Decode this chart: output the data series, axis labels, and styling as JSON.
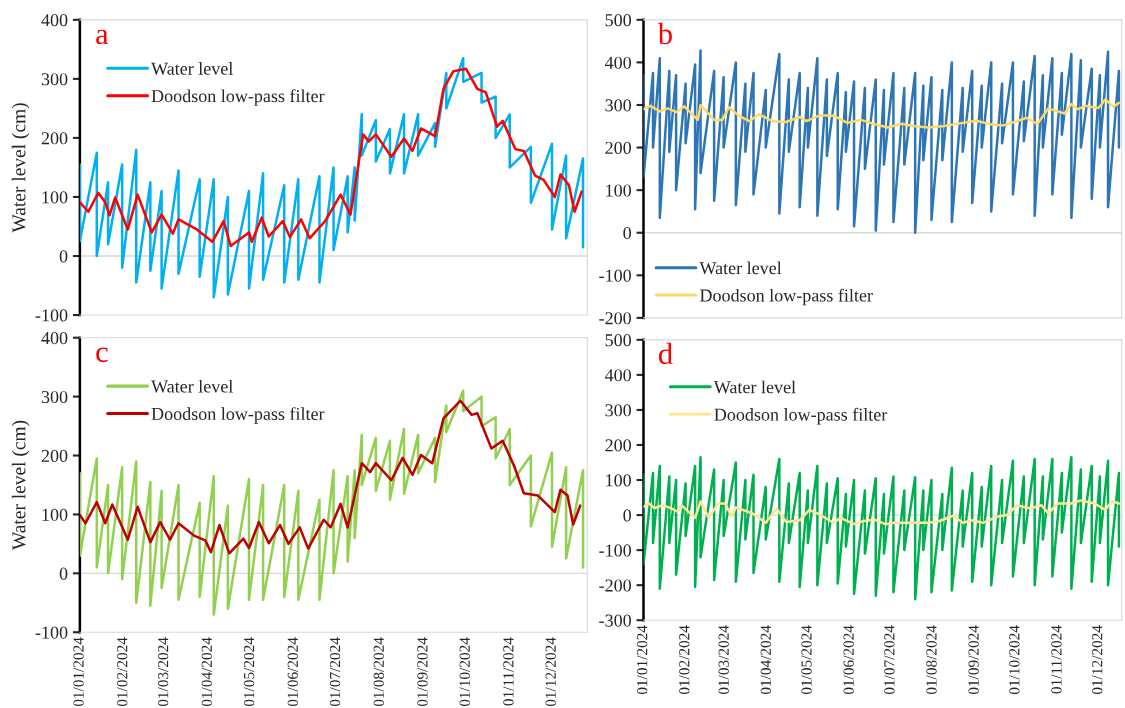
{
  "chart_data": [
    {
      "type": "line",
      "ylabel": "Water level (cm)",
      "annotations": [
        "a"
      ],
      "legend": "top left",
      "tick_labels": "y",
      "xlim": [
        "2024-01-01",
        "2024-12-26"
      ],
      "ylim": [
        -100,
        400
      ],
      "yticks": [
        -100,
        0,
        100,
        200,
        300,
        400
      ],
      "ref_lines": [
        {
          "axis": "y",
          "value": 0,
          "color": "#d9d9d9"
        }
      ],
      "series": [
        {
          "name": "Water level",
          "color": "#00b0f0",
          "x": [
            "2024-01-01",
            "2024-01-01",
            "2024-01-13",
            "2024-01-13",
            "2024-01-21",
            "2024-01-21",
            "2024-01-31",
            "2024-01-31",
            "2024-02-10",
            "2024-02-10",
            "2024-02-20",
            "2024-02-20",
            "2024-02-28",
            "2024-02-28",
            "2024-03-11",
            "2024-03-11",
            "2024-03-26",
            "2024-03-26",
            "2024-04-05",
            "2024-04-05",
            "2024-04-15",
            "2024-04-15",
            "2024-04-30",
            "2024-04-30",
            "2024-05-10",
            "2024-05-10",
            "2024-05-25",
            "2024-05-25",
            "2024-06-04",
            "2024-06-04",
            "2024-06-19",
            "2024-06-19",
            "2024-06-29",
            "2024-06-29",
            "2024-07-09",
            "2024-07-09",
            "2024-07-14",
            "2024-07-14",
            "2024-07-19",
            "2024-07-19",
            "2024-07-29",
            "2024-07-29",
            "2024-08-08",
            "2024-08-08",
            "2024-08-18",
            "2024-08-18",
            "2024-08-28",
            "2024-08-28",
            "2024-09-09",
            "2024-09-09",
            "2024-09-17",
            "2024-09-17",
            "2024-09-29",
            "2024-09-29",
            "2024-10-12",
            "2024-10-12",
            "2024-10-22",
            "2024-10-22",
            "2024-11-01",
            "2024-11-01",
            "2024-11-16",
            "2024-11-16",
            "2024-12-01",
            "2024-12-01",
            "2024-12-11",
            "2024-12-11",
            "2024-12-23",
            "2024-12-23"
          ],
          "values": [
            155,
            25,
            175,
            0,
            125,
            20,
            155,
            -20,
            180,
            -45,
            125,
            -25,
            110,
            -55,
            145,
            -30,
            130,
            -35,
            130,
            -70,
            100,
            -65,
            110,
            -55,
            140,
            -40,
            120,
            -45,
            130,
            -40,
            135,
            -45,
            150,
            10,
            135,
            40,
            150,
            60,
            240,
            170,
            230,
            160,
            215,
            140,
            240,
            140,
            240,
            170,
            225,
            185,
            310,
            250,
            335,
            295,
            310,
            260,
            270,
            200,
            240,
            150,
            185,
            90,
            190,
            45,
            170,
            30,
            165,
            15
          ]
        },
        {
          "name": "Doodson low-pass filter",
          "color": "#ff0000",
          "x": [
            "2024-01-01",
            "2024-01-07",
            "2024-01-14",
            "2024-01-19",
            "2024-01-22",
            "2024-01-26",
            "2024-02-04",
            "2024-02-11",
            "2024-02-21",
            "2024-02-28",
            "2024-03-07",
            "2024-03-11",
            "2024-03-24",
            "2024-04-04",
            "2024-04-12",
            "2024-04-17",
            "2024-04-30",
            "2024-05-02",
            "2024-05-09",
            "2024-05-14",
            "2024-05-24",
            "2024-05-29",
            "2024-06-06",
            "2024-06-12",
            "2024-06-23",
            "2024-07-04",
            "2024-07-11",
            "2024-07-20",
            "2024-07-24",
            "2024-07-29",
            "2024-08-09",
            "2024-08-18",
            "2024-08-24",
            "2024-08-30",
            "2024-09-09",
            "2024-09-15",
            "2024-09-22",
            "2024-10-01",
            "2024-10-09",
            "2024-10-15",
            "2024-10-23",
            "2024-10-27",
            "2024-11-05",
            "2024-11-11",
            "2024-11-19",
            "2024-11-25",
            "2024-12-03",
            "2024-12-07",
            "2024-12-13",
            "2024-12-17",
            "2024-12-22"
          ],
          "values": [
            91,
            75,
            107,
            91,
            69,
            99,
            45,
            104,
            40,
            70,
            38,
            62,
            45,
            24,
            59,
            17,
            40,
            24,
            65,
            33,
            59,
            32,
            62,
            30,
            59,
            104,
            70,
            206,
            194,
            206,
            168,
            199,
            178,
            216,
            203,
            283,
            313,
            317,
            283,
            277,
            219,
            229,
            181,
            178,
            136,
            129,
            100,
            138,
            120,
            75,
            109
          ]
        }
      ]
    },
    {
      "type": "line",
      "annotations": [
        "b"
      ],
      "legend": "bottom left",
      "tick_labels": "y",
      "xlim": [
        "2024-01-01",
        "2024-12-18"
      ],
      "ylim": [
        -200,
        500
      ],
      "yticks": [
        -200,
        -100,
        0,
        100,
        200,
        300,
        400,
        500
      ],
      "ref_lines": [
        {
          "axis": "y",
          "value": 0,
          "color": "#d9d9d9"
        }
      ],
      "series": [
        {
          "name": "Water level",
          "color": "#2e75b6",
          "x": [
            "2024-01-01",
            "2024-01-01",
            "2024-01-08",
            "2024-01-08",
            "2024-01-13",
            "2024-01-13",
            "2024-01-20",
            "2024-01-20",
            "2024-01-25",
            "2024-01-25",
            "2024-02-01",
            "2024-02-01",
            "2024-02-08",
            "2024-02-08",
            "2024-02-12",
            "2024-02-12",
            "2024-02-22",
            "2024-02-22",
            "2024-02-29",
            "2024-02-29",
            "2024-03-09",
            "2024-03-09",
            "2024-03-16",
            "2024-03-16",
            "2024-03-22",
            "2024-03-22",
            "2024-03-31",
            "2024-03-31",
            "2024-04-10",
            "2024-04-10",
            "2024-04-17",
            "2024-04-17",
            "2024-04-25",
            "2024-04-25",
            "2024-05-01",
            "2024-05-01",
            "2024-05-08",
            "2024-05-08",
            "2024-05-15",
            "2024-05-15",
            "2024-05-23",
            "2024-05-23",
            "2024-05-29",
            "2024-05-29",
            "2024-06-04",
            "2024-06-04",
            "2024-06-12",
            "2024-06-12",
            "2024-06-20",
            "2024-06-20",
            "2024-06-26",
            "2024-06-26",
            "2024-07-03",
            "2024-07-03",
            "2024-07-11",
            "2024-07-11",
            "2024-07-19",
            "2024-07-19",
            "2024-07-25",
            "2024-07-25",
            "2024-07-31",
            "2024-07-31",
            "2024-08-08",
            "2024-08-08",
            "2024-08-15",
            "2024-08-15",
            "2024-08-23",
            "2024-08-23",
            "2024-08-30",
            "2024-08-30",
            "2024-09-06",
            "2024-09-06",
            "2024-09-13",
            "2024-09-13",
            "2024-09-21",
            "2024-09-21",
            "2024-09-29",
            "2024-09-29",
            "2024-10-07",
            "2024-10-07",
            "2024-10-15",
            "2024-10-15",
            "2024-10-21",
            "2024-10-21",
            "2024-10-28",
            "2024-10-28",
            "2024-11-04",
            "2024-11-04",
            "2024-11-11",
            "2024-11-11",
            "2024-11-18",
            "2024-11-18",
            "2024-11-26",
            "2024-11-26",
            "2024-12-02",
            "2024-12-02",
            "2024-12-08",
            "2024-12-08",
            "2024-12-16",
            "2024-12-16"
          ],
          "values": [
            370,
            130,
            375,
            200,
            410,
            35,
            380,
            190,
            370,
            100,
            350,
            210,
            395,
            55,
            428,
            140,
            380,
            75,
            365,
            200,
            400,
            65,
            350,
            190,
            375,
            90,
            335,
            200,
            420,
            45,
            360,
            190,
            375,
            60,
            340,
            200,
            410,
            40,
            360,
            180,
            375,
            55,
            330,
            190,
            355,
            15,
            340,
            150,
            360,
            5,
            335,
            160,
            375,
            25,
            340,
            160,
            375,
            0,
            345,
            170,
            365,
            30,
            335,
            170,
            400,
            25,
            340,
            190,
            380,
            70,
            345,
            200,
            400,
            50,
            350,
            210,
            400,
            90,
            355,
            215,
            415,
            40,
            370,
            200,
            410,
            90,
            375,
            230,
            420,
            35,
            405,
            200,
            385,
            80,
            370,
            200,
            425,
            60,
            380,
            200
          ]
        },
        {
          "name": "Doodson low-pass filter",
          "color": "#ffd966",
          "x": [
            "2024-01-01",
            "2024-01-06",
            "2024-01-13",
            "2024-01-19",
            "2024-01-25",
            "2024-01-31",
            "2024-02-10",
            "2024-02-12",
            "2024-02-22",
            "2024-02-28",
            "2024-03-04",
            "2024-03-11",
            "2024-03-19",
            "2024-03-26",
            "2024-04-05",
            "2024-04-15",
            "2024-04-25",
            "2024-04-30",
            "2024-05-10",
            "2024-05-20",
            "2024-05-30",
            "2024-06-09",
            "2024-06-19",
            "2024-06-29",
            "2024-07-09",
            "2024-07-19",
            "2024-07-29",
            "2024-08-08",
            "2024-08-23",
            "2024-09-02",
            "2024-09-12",
            "2024-09-22",
            "2024-10-02",
            "2024-10-09",
            "2024-10-17",
            "2024-10-25",
            "2024-11-01",
            "2024-11-06",
            "2024-11-11",
            "2024-11-16",
            "2024-11-21",
            "2024-12-01",
            "2024-12-06",
            "2024-12-12",
            "2024-12-16"
          ],
          "values": [
            290,
            298,
            285,
            292,
            283,
            297,
            265,
            300,
            265,
            265,
            295,
            275,
            262,
            278,
            262,
            260,
            272,
            262,
            276,
            275,
            258,
            265,
            255,
            247,
            256,
            250,
            247,
            250,
            258,
            263,
            255,
            252,
            262,
            270,
            255,
            292,
            285,
            280,
            302,
            290,
            298,
            293,
            313,
            296,
            305
          ]
        }
      ]
    },
    {
      "type": "line",
      "ylabel": "Water level (cm)",
      "annotations": [
        "c"
      ],
      "legend": "top left",
      "xlim": [
        "2024-01-01",
        "2024-12-26"
      ],
      "ylim": [
        -100,
        400
      ],
      "yticks": [
        -100,
        0,
        100,
        200,
        300,
        400
      ],
      "xticks": [
        {
          "value": "2024-01-01",
          "label": "01/01/2024"
        },
        {
          "value": "2024-02-01",
          "label": "01/02/2024"
        },
        {
          "value": "2024-03-01",
          "label": "01/03/2024"
        },
        {
          "value": "2024-04-01",
          "label": "01/04/2024"
        },
        {
          "value": "2024-05-01",
          "label": "01/05/2024"
        },
        {
          "value": "2024-06-01",
          "label": "01/06/2024"
        },
        {
          "value": "2024-07-01",
          "label": "01/07/2024"
        },
        {
          "value": "2024-08-01",
          "label": "01/08/2024"
        },
        {
          "value": "2024-09-01",
          "label": "01/09/2024"
        },
        {
          "value": "2024-10-01",
          "label": "01/10/2024"
        },
        {
          "value": "2024-11-01",
          "label": "01/11/2024"
        },
        {
          "value": "2024-12-01",
          "label": "01/12/2024"
        }
      ],
      "ref_lines": [
        {
          "axis": "y",
          "value": 0,
          "color": "#d9d9d9"
        }
      ],
      "series": [
        {
          "name": "Water level",
          "color": "#92d050",
          "x": [
            "2024-01-01",
            "2024-01-01",
            "2024-01-13",
            "2024-01-13",
            "2024-01-21",
            "2024-01-21",
            "2024-01-31",
            "2024-01-31",
            "2024-02-10",
            "2024-02-10",
            "2024-02-20",
            "2024-02-20",
            "2024-02-28",
            "2024-02-28",
            "2024-03-11",
            "2024-03-11",
            "2024-03-26",
            "2024-03-26",
            "2024-04-05",
            "2024-04-05",
            "2024-04-15",
            "2024-04-15",
            "2024-04-30",
            "2024-04-30",
            "2024-05-10",
            "2024-05-10",
            "2024-05-25",
            "2024-05-25",
            "2024-06-04",
            "2024-06-04",
            "2024-06-19",
            "2024-06-19",
            "2024-06-29",
            "2024-06-29",
            "2024-07-09",
            "2024-07-09",
            "2024-07-14",
            "2024-07-14",
            "2024-07-19",
            "2024-07-19",
            "2024-07-29",
            "2024-07-29",
            "2024-08-08",
            "2024-08-08",
            "2024-08-18",
            "2024-08-18",
            "2024-08-28",
            "2024-08-28",
            "2024-09-09",
            "2024-09-09",
            "2024-09-17",
            "2024-09-17",
            "2024-09-29",
            "2024-09-29",
            "2024-10-12",
            "2024-10-12",
            "2024-10-22",
            "2024-10-22",
            "2024-11-01",
            "2024-11-01",
            "2024-11-16",
            "2024-11-16",
            "2024-12-01",
            "2024-12-01",
            "2024-12-11",
            "2024-12-11",
            "2024-12-23",
            "2024-12-23"
          ],
          "values": [
            170,
            30,
            195,
            10,
            150,
            0,
            180,
            -10,
            190,
            -50,
            155,
            -55,
            140,
            -25,
            150,
            -45,
            120,
            -40,
            165,
            -70,
            115,
            -60,
            160,
            -45,
            150,
            -45,
            150,
            -40,
            140,
            -45,
            125,
            -45,
            175,
            0,
            165,
            20,
            175,
            60,
            235,
            150,
            230,
            140,
            225,
            125,
            245,
            135,
            235,
            170,
            230,
            155,
            285,
            240,
            310,
            275,
            300,
            250,
            265,
            195,
            245,
            150,
            200,
            80,
            205,
            45,
            180,
            25,
            175,
            10
          ]
        },
        {
          "name": "Doodson low-pass filter",
          "color": "#c00000",
          "x": [
            "2024-01-01",
            "2024-01-05",
            "2024-01-13",
            "2024-01-19",
            "2024-01-24",
            "2024-02-04",
            "2024-02-11",
            "2024-02-20",
            "2024-02-27",
            "2024-03-05",
            "2024-03-11",
            "2024-03-22",
            "2024-03-30",
            "2024-04-03",
            "2024-04-09",
            "2024-04-16",
            "2024-04-26",
            "2024-04-30",
            "2024-05-07",
            "2024-05-14",
            "2024-05-22",
            "2024-05-28",
            "2024-06-05",
            "2024-06-11",
            "2024-06-22",
            "2024-06-27",
            "2024-07-04",
            "2024-07-09",
            "2024-07-19",
            "2024-07-25",
            "2024-07-29",
            "2024-08-09",
            "2024-08-17",
            "2024-08-24",
            "2024-08-30",
            "2024-09-07",
            "2024-09-15",
            "2024-09-27",
            "2024-10-05",
            "2024-10-09",
            "2024-10-19",
            "2024-10-27",
            "2024-11-04",
            "2024-11-11",
            "2024-11-21",
            "2024-12-03",
            "2024-12-07",
            "2024-12-12",
            "2024-12-16",
            "2024-12-21"
          ],
          "values": [
            99,
            85,
            121,
            85,
            117,
            57,
            113,
            53,
            87,
            57,
            85,
            64,
            56,
            36,
            82,
            34,
            59,
            43,
            87,
            51,
            82,
            50,
            78,
            42,
            91,
            78,
            118,
            78,
            187,
            172,
            187,
            158,
            196,
            167,
            201,
            187,
            263,
            293,
            269,
            272,
            212,
            225,
            183,
            136,
            132,
            104,
            142,
            132,
            83,
            115
          ]
        }
      ]
    },
    {
      "type": "line",
      "annotations": [
        "d"
      ],
      "legend": "top left",
      "xlim": [
        "2024-01-01",
        "2024-12-18"
      ],
      "ylim": [
        -300,
        500
      ],
      "yticks": [
        -300,
        -200,
        -100,
        0,
        100,
        200,
        300,
        400,
        500
      ],
      "xticks": [
        {
          "value": "2024-01-01",
          "label": "01/01/2024"
        },
        {
          "value": "2024-02-01",
          "label": "01/02/2024"
        },
        {
          "value": "2024-03-01",
          "label": "01/03/2024"
        },
        {
          "value": "2024-04-01",
          "label": "01/04/2024"
        },
        {
          "value": "2024-05-01",
          "label": "01/05/2024"
        },
        {
          "value": "2024-06-01",
          "label": "01/06/2024"
        },
        {
          "value": "2024-07-01",
          "label": "01/07/2024"
        },
        {
          "value": "2024-08-01",
          "label": "01/08/2024"
        },
        {
          "value": "2024-09-01",
          "label": "01/09/2024"
        },
        {
          "value": "2024-10-01",
          "label": "01/10/2024"
        },
        {
          "value": "2024-11-01",
          "label": "01/11/2024"
        },
        {
          "value": "2024-12-01",
          "label": "01/12/2024"
        }
      ],
      "ref_lines": [
        {
          "axis": "y",
          "value": 0,
          "color": "#d9d9d9"
        }
      ],
      "series": [
        {
          "name": "Water level",
          "color": "#00b050",
          "x": [
            "2024-01-01",
            "2024-01-01",
            "2024-01-08",
            "2024-01-08",
            "2024-01-13",
            "2024-01-13",
            "2024-01-20",
            "2024-01-20",
            "2024-01-25",
            "2024-01-25",
            "2024-02-01",
            "2024-02-01",
            "2024-02-08",
            "2024-02-08",
            "2024-02-12",
            "2024-02-12",
            "2024-02-22",
            "2024-02-22",
            "2024-02-29",
            "2024-02-29",
            "2024-03-09",
            "2024-03-09",
            "2024-03-16",
            "2024-03-16",
            "2024-03-22",
            "2024-03-22",
            "2024-03-31",
            "2024-03-31",
            "2024-04-10",
            "2024-04-10",
            "2024-04-17",
            "2024-04-17",
            "2024-04-25",
            "2024-04-25",
            "2024-05-01",
            "2024-05-01",
            "2024-05-08",
            "2024-05-08",
            "2024-05-15",
            "2024-05-15",
            "2024-05-23",
            "2024-05-23",
            "2024-05-29",
            "2024-05-29",
            "2024-06-04",
            "2024-06-04",
            "2024-06-12",
            "2024-06-12",
            "2024-06-20",
            "2024-06-20",
            "2024-06-26",
            "2024-06-26",
            "2024-07-03",
            "2024-07-03",
            "2024-07-11",
            "2024-07-11",
            "2024-07-19",
            "2024-07-19",
            "2024-07-25",
            "2024-07-25",
            "2024-07-31",
            "2024-07-31",
            "2024-08-08",
            "2024-08-08",
            "2024-08-15",
            "2024-08-15",
            "2024-08-23",
            "2024-08-23",
            "2024-08-30",
            "2024-08-30",
            "2024-09-06",
            "2024-09-06",
            "2024-09-13",
            "2024-09-13",
            "2024-09-21",
            "2024-09-21",
            "2024-09-29",
            "2024-09-29",
            "2024-10-07",
            "2024-10-07",
            "2024-10-15",
            "2024-10-15",
            "2024-10-21",
            "2024-10-21",
            "2024-10-28",
            "2024-10-28",
            "2024-11-04",
            "2024-11-04",
            "2024-11-11",
            "2024-11-11",
            "2024-11-18",
            "2024-11-18",
            "2024-11-26",
            "2024-11-26",
            "2024-12-02",
            "2024-12-02",
            "2024-12-08",
            "2024-12-08",
            "2024-12-16",
            "2024-12-16"
          ],
          "values": [
            115,
            -140,
            120,
            -80,
            140,
            -210,
            110,
            -80,
            100,
            -170,
            90,
            -60,
            140,
            -205,
            165,
            -120,
            130,
            -185,
            100,
            -60,
            150,
            -190,
            100,
            -70,
            115,
            -165,
            80,
            -70,
            160,
            -190,
            90,
            -80,
            120,
            -205,
            70,
            -80,
            140,
            -200,
            90,
            -80,
            105,
            -195,
            60,
            -90,
            100,
            -225,
            70,
            -110,
            105,
            -230,
            60,
            -110,
            110,
            -220,
            70,
            -100,
            108,
            -240,
            70,
            -100,
            100,
            -220,
            60,
            -100,
            135,
            -215,
            70,
            -90,
            120,
            -190,
            80,
            -90,
            140,
            -200,
            100,
            -80,
            155,
            -175,
            110,
            -80,
            160,
            -200,
            110,
            -70,
            160,
            -175,
            120,
            -50,
            165,
            -210,
            130,
            -80,
            140,
            -190,
            110,
            -80,
            155,
            -200,
            120,
            -90
          ]
        },
        {
          "name": "Doodson low-pass filter",
          "color": "#ffe699",
          "x": [
            "2024-01-01",
            "2024-01-05",
            "2024-01-09",
            "2024-01-15",
            "2024-01-21",
            "2024-01-26",
            "2024-01-29",
            "2024-02-08",
            "2024-02-12",
            "2024-02-18",
            "2024-02-25",
            "2024-03-01",
            "2024-03-06",
            "2024-03-09",
            "2024-03-21",
            "2024-03-31",
            "2024-04-08",
            "2024-04-15",
            "2024-04-25",
            "2024-05-02",
            "2024-05-10",
            "2024-05-20",
            "2024-05-25",
            "2024-06-04",
            "2024-06-11",
            "2024-06-19",
            "2024-06-27",
            "2024-07-04",
            "2024-07-19",
            "2024-07-29",
            "2024-08-06",
            "2024-08-16",
            "2024-08-23",
            "2024-08-30",
            "2024-09-07",
            "2024-09-17",
            "2024-09-25",
            "2024-10-02",
            "2024-10-12",
            "2024-10-20",
            "2024-10-25",
            "2024-11-01",
            "2024-11-11",
            "2024-11-18",
            "2024-11-28",
            "2024-12-06",
            "2024-12-11",
            "2024-12-16"
          ],
          "values": [
            24,
            33,
            20,
            28,
            20,
            10,
            28,
            -8,
            39,
            -8,
            33,
            33,
            -4,
            22,
            5,
            -22,
            19,
            -20,
            -15,
            15,
            1,
            -22,
            -8,
            -26,
            -17,
            -13,
            -26,
            -22,
            -22,
            -22,
            -17,
            -2,
            -22,
            -15,
            -22,
            -5,
            1,
            28,
            19,
            28,
            5,
            33,
            33,
            42,
            33,
            15,
            40,
            33
          ]
        }
      ]
    }
  ]
}
